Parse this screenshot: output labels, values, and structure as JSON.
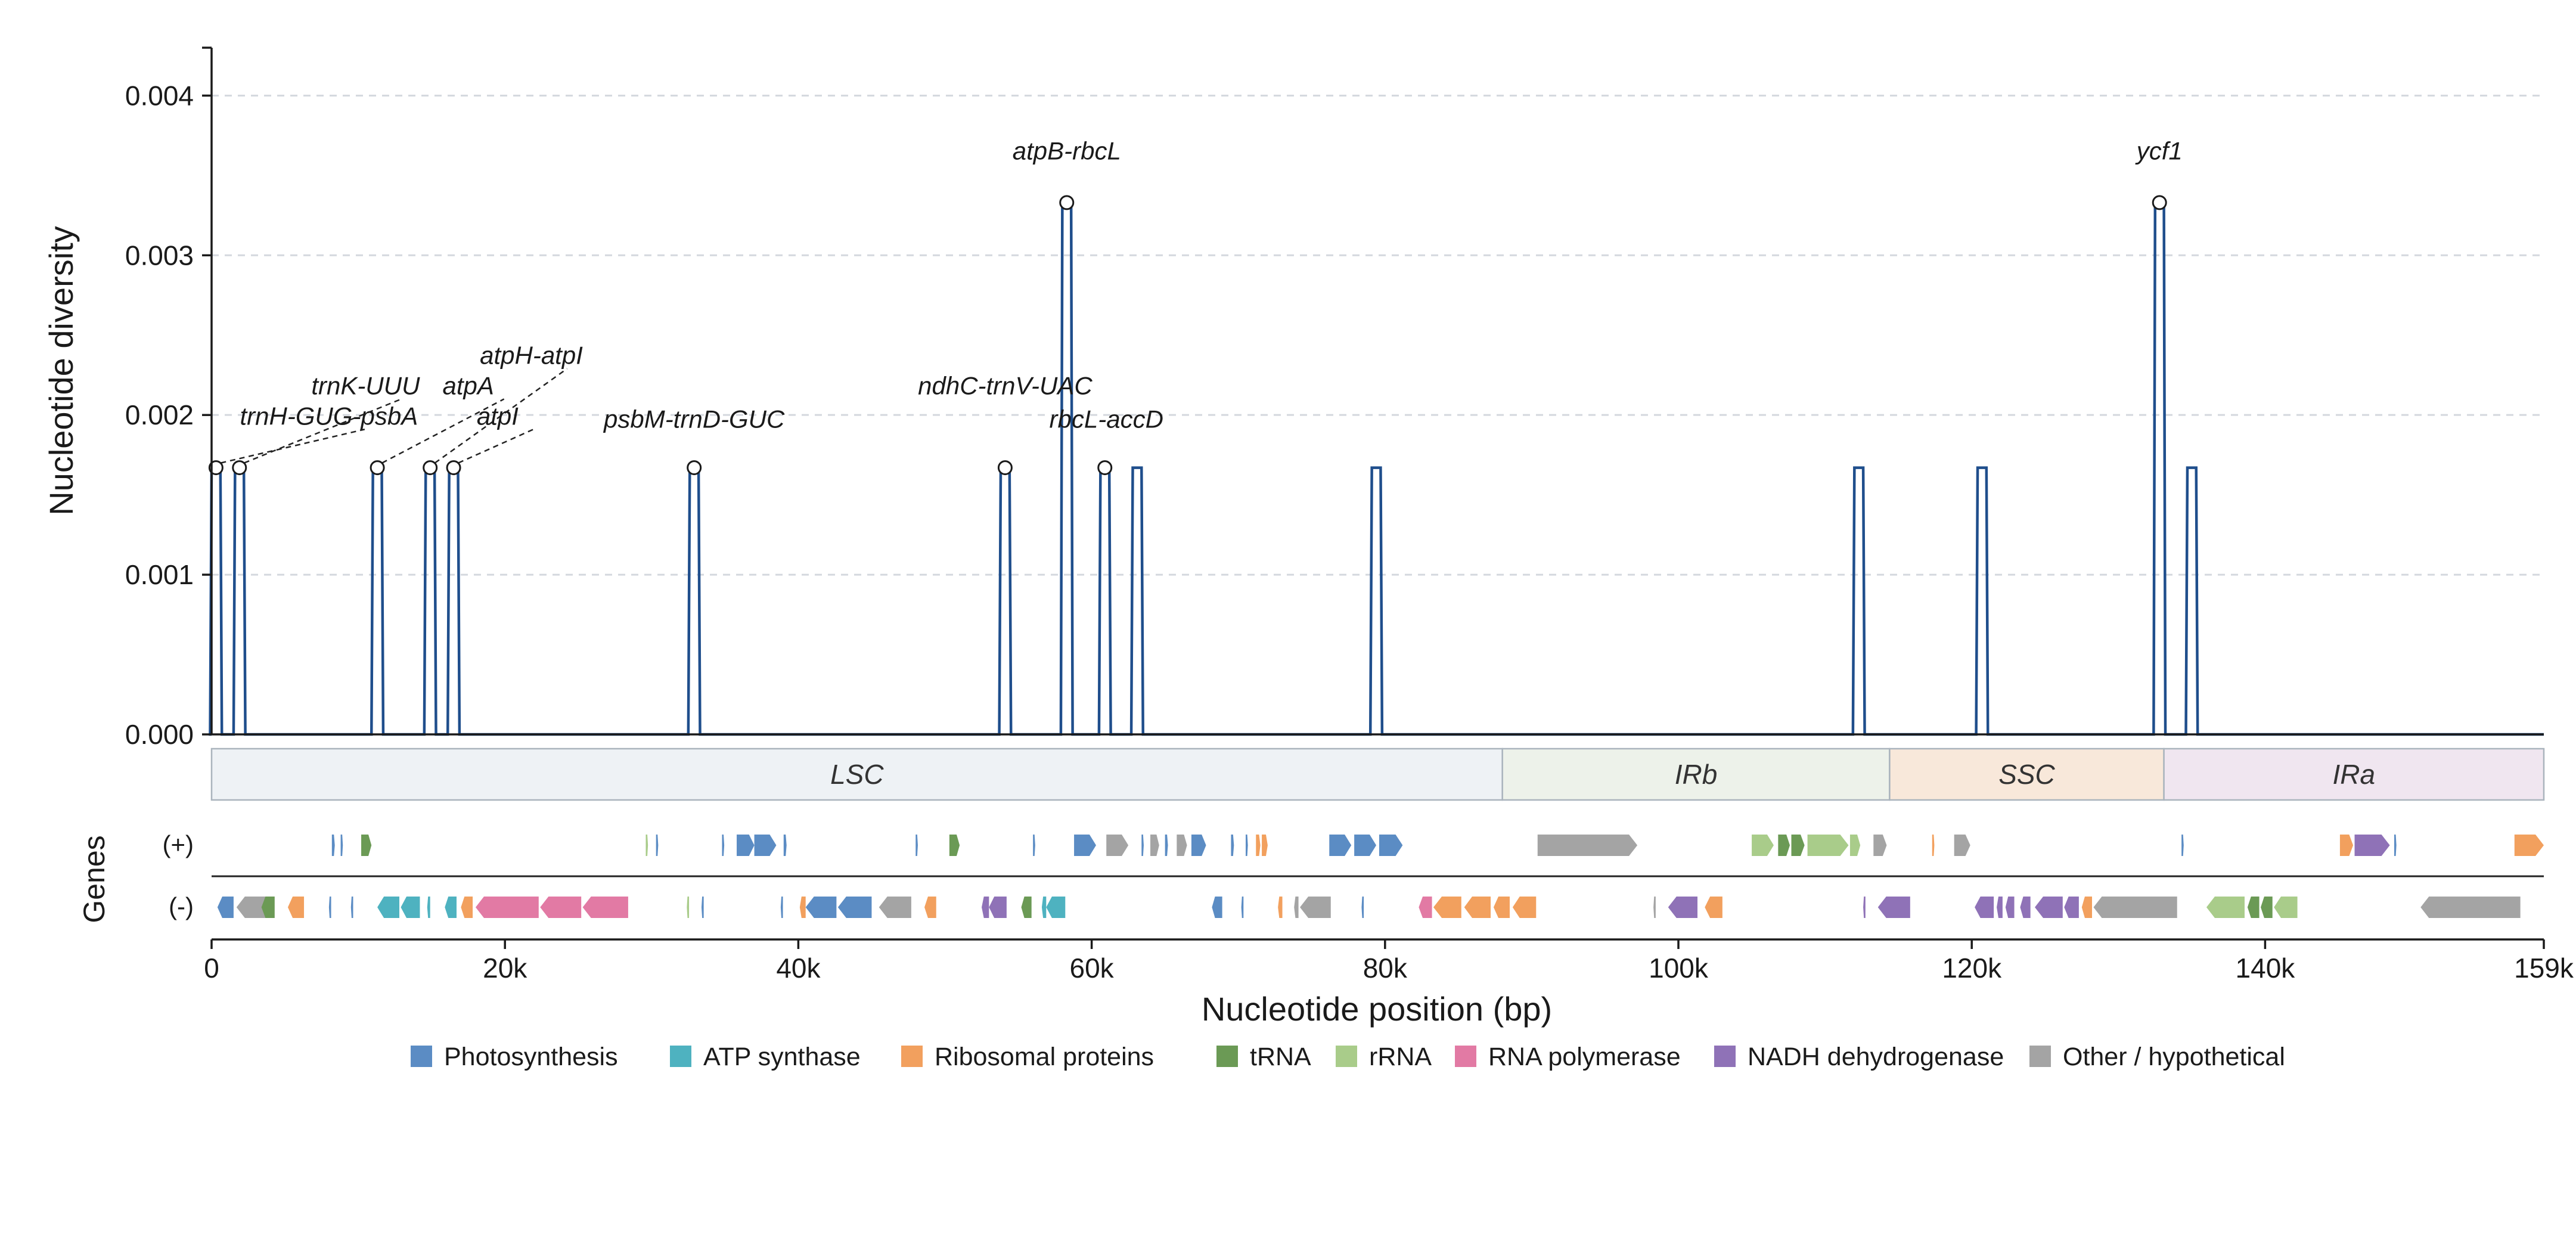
{
  "chart_data": {
    "type": "line",
    "ylabel": "Nucleotide diversity",
    "xlabel": "Nucleotide position (bp)",
    "genes_label": "Genes",
    "strand_labels": [
      "(+)",
      "(-)"
    ],
    "xlim": [
      0,
      159000
    ],
    "ylim": [
      0,
      0.0043
    ],
    "grid": true,
    "x_ticks": [
      0,
      20000,
      40000,
      60000,
      80000,
      100000,
      120000,
      140000,
      159000
    ],
    "x_tick_labels": [
      "0",
      "20k",
      "40k",
      "60k",
      "80k",
      "100k",
      "120k",
      "140k",
      "159k"
    ],
    "y_ticks": [
      0,
      0.001,
      0.002,
      0.003,
      0.004
    ],
    "y_tick_labels": [
      "0.000",
      "0.001",
      "0.002",
      "0.003",
      "0.004"
    ],
    "series": [
      {
        "color": "#1f4e8c",
        "peak_width": 600,
        "peaks": [
          {
            "x": 300,
            "y": 0.00167
          },
          {
            "x": 1900,
            "y": 0.00167
          },
          {
            "x": 11300,
            "y": 0.00167
          },
          {
            "x": 14900,
            "y": 0.00167
          },
          {
            "x": 16500,
            "y": 0.00167
          },
          {
            "x": 32900,
            "y": 0.00167
          },
          {
            "x": 54100,
            "y": 0.00167
          },
          {
            "x": 58300,
            "y": 0.00333
          },
          {
            "x": 60900,
            "y": 0.00167
          },
          {
            "x": 63100,
            "y": 0.00167
          },
          {
            "x": 79400,
            "y": 0.00167
          },
          {
            "x": 112300,
            "y": 0.00167
          },
          {
            "x": 120700,
            "y": 0.00167
          },
          {
            "x": 132800,
            "y": 0.00333
          },
          {
            "x": 135000,
            "y": 0.00167
          }
        ]
      }
    ],
    "annotations": [
      {
        "text": "trnH-GUG-psbA",
        "x": 300,
        "y": 0.00167,
        "tx": 8000,
        "ty": 0.00194,
        "leader": true
      },
      {
        "text": "trnK-UUU",
        "x": 1900,
        "y": 0.00167,
        "tx": 10500,
        "ty": 0.00213,
        "leader": true
      },
      {
        "text": "atpA",
        "x": 11300,
        "y": 0.00167,
        "tx": 17500,
        "ty": 0.00213,
        "leader": true
      },
      {
        "text": "atpH-atpI",
        "x": 14900,
        "y": 0.00167,
        "tx": 21800,
        "ty": 0.00232,
        "leader": true
      },
      {
        "text": "atpI",
        "x": 16500,
        "y": 0.00167,
        "tx": 19500,
        "ty": 0.00194,
        "leader": true
      },
      {
        "text": "psbM-trnD-GUC",
        "x": 32900,
        "y": 0.00167,
        "tx": 32900,
        "ty": 0.00192,
        "leader": false
      },
      {
        "text": "ndhC-trnV-UAC",
        "x": 54100,
        "y": 0.00167,
        "tx": 54100,
        "ty": 0.00213,
        "leader": false
      },
      {
        "text": "atpB-rbcL",
        "x": 58300,
        "y": 0.00333,
        "tx": 58300,
        "ty": 0.0036,
        "leader": false
      },
      {
        "text": "rbcL-accD",
        "x": 60900,
        "y": 0.00167,
        "tx": 61000,
        "ty": 0.00192,
        "leader": false
      },
      {
        "text": "ycf1",
        "x": 132800,
        "y": 0.00333,
        "tx": 132800,
        "ty": 0.0036,
        "leader": false
      }
    ],
    "regions": [
      {
        "name": "LSC",
        "start": 0,
        "end": 88000,
        "color": "#eef2f5"
      },
      {
        "name": "IRb",
        "start": 88000,
        "end": 114400,
        "color": "#edf2ea"
      },
      {
        "name": "SSC",
        "start": 114400,
        "end": 133100,
        "color": "#f8e8da"
      },
      {
        "name": "IRa",
        "start": 133100,
        "end": 159000,
        "color": "#f0e6f0"
      }
    ],
    "legend": {
      "position": "bottom",
      "items": [
        {
          "label": "Photosynthesis",
          "color": "#5b8cc4"
        },
        {
          "label": "ATP synthase",
          "color": "#4eb2c0"
        },
        {
          "label": "Ribosomal proteins",
          "color": "#f2a05e"
        },
        {
          "label": "tRNA",
          "color": "#6b9a55"
        },
        {
          "label": "rRNA",
          "color": "#a9cc8a"
        },
        {
          "label": "RNA polymerase",
          "color": "#e27aa4"
        },
        {
          "label": "NADH dehydrogenase",
          "color": "#8f72b7"
        },
        {
          "label": "Other / hypothetical",
          "color": "#a4a4a4"
        }
      ]
    },
    "genes": [
      {
        "strand": "+",
        "start": 8200,
        "end": 8400,
        "cat": "Photosynthesis"
      },
      {
        "strand": "+",
        "start": 8800,
        "end": 8950,
        "cat": "Photosynthesis"
      },
      {
        "strand": "+",
        "start": 10200,
        "end": 10900,
        "cat": "tRNA"
      },
      {
        "strand": "+",
        "start": 29600,
        "end": 29750,
        "cat": "rRNA"
      },
      {
        "strand": "+",
        "start": 30300,
        "end": 30450,
        "cat": "Photosynthesis"
      },
      {
        "strand": "+",
        "start": 34800,
        "end": 34950,
        "cat": "Photosynthesis"
      },
      {
        "strand": "+",
        "start": 35800,
        "end": 37000,
        "cat": "Photosynthesis"
      },
      {
        "strand": "+",
        "start": 37000,
        "end": 38500,
        "cat": "Photosynthesis"
      },
      {
        "strand": "+",
        "start": 39000,
        "end": 39200,
        "cat": "Photosynthesis"
      },
      {
        "strand": "+",
        "start": 48000,
        "end": 48150,
        "cat": "Photosynthesis"
      },
      {
        "strand": "+",
        "start": 50300,
        "end": 51000,
        "cat": "tRNA"
      },
      {
        "strand": "+",
        "start": 56000,
        "end": 56150,
        "cat": "Photosynthesis"
      },
      {
        "strand": "+",
        "start": 58800,
        "end": 60300,
        "cat": "Photosynthesis"
      },
      {
        "strand": "+",
        "start": 61000,
        "end": 62500,
        "cat": "Other / hypothetical"
      },
      {
        "strand": "+",
        "start": 63400,
        "end": 63550,
        "cat": "Photosynthesis"
      },
      {
        "strand": "+",
        "start": 64000,
        "end": 64600,
        "cat": "Other / hypothetical"
      },
      {
        "strand": "+",
        "start": 65000,
        "end": 65200,
        "cat": "Photosynthesis"
      },
      {
        "strand": "+",
        "start": 65800,
        "end": 66500,
        "cat": "Other / hypothetical"
      },
      {
        "strand": "+",
        "start": 66800,
        "end": 67800,
        "cat": "Photosynthesis"
      },
      {
        "strand": "+",
        "start": 69500,
        "end": 69700,
        "cat": "Photosynthesis"
      },
      {
        "strand": "+",
        "start": 70500,
        "end": 70650,
        "cat": "Photosynthesis"
      },
      {
        "strand": "+",
        "start": 71200,
        "end": 71500,
        "cat": "Ribosomal proteins"
      },
      {
        "strand": "+",
        "start": 71600,
        "end": 72000,
        "cat": "Ribosomal proteins"
      },
      {
        "strand": "+",
        "start": 76200,
        "end": 77700,
        "cat": "Photosynthesis"
      },
      {
        "strand": "+",
        "start": 77900,
        "end": 79400,
        "cat": "Photosynthesis"
      },
      {
        "strand": "+",
        "start": 79600,
        "end": 81200,
        "cat": "Photosynthesis"
      },
      {
        "strand": "+",
        "start": 90400,
        "end": 97200,
        "cat": "Other / hypothetical"
      },
      {
        "strand": "+",
        "start": 105000,
        "end": 106500,
        "cat": "rRNA"
      },
      {
        "strand": "+",
        "start": 106800,
        "end": 107600,
        "cat": "tRNA"
      },
      {
        "strand": "+",
        "start": 107700,
        "end": 108600,
        "cat": "tRNA"
      },
      {
        "strand": "+",
        "start": 108800,
        "end": 111600,
        "cat": "rRNA"
      },
      {
        "strand": "+",
        "start": 111700,
        "end": 112400,
        "cat": "rRNA"
      },
      {
        "strand": "+",
        "start": 113300,
        "end": 114200,
        "cat": "Other / hypothetical"
      },
      {
        "strand": "+",
        "start": 117300,
        "end": 117450,
        "cat": "Ribosomal proteins"
      },
      {
        "strand": "+",
        "start": 118800,
        "end": 119900,
        "cat": "Other / hypothetical"
      },
      {
        "strand": "+",
        "start": 134300,
        "end": 134450,
        "cat": "Photosynthesis"
      },
      {
        "strand": "+",
        "start": 145100,
        "end": 146000,
        "cat": "Ribosomal proteins"
      },
      {
        "strand": "+",
        "start": 146100,
        "end": 148500,
        "cat": "NADH dehydrogenase"
      },
      {
        "strand": "+",
        "start": 148800,
        "end": 148950,
        "cat": "Photosynthesis"
      },
      {
        "strand": "+",
        "start": 157000,
        "end": 159000,
        "cat": "Ribosomal proteins"
      },
      {
        "strand": "-",
        "start": 400,
        "end": 1500,
        "cat": "Photosynthesis"
      },
      {
        "strand": "-",
        "start": 1700,
        "end": 3900,
        "cat": "Other / hypothetical"
      },
      {
        "strand": "-",
        "start": 3400,
        "end": 4300,
        "cat": "tRNA"
      },
      {
        "strand": "-",
        "start": 5200,
        "end": 6300,
        "cat": "Ribosomal proteins"
      },
      {
        "strand": "-",
        "start": 8000,
        "end": 8150,
        "cat": "Photosynthesis"
      },
      {
        "strand": "-",
        "start": 9500,
        "end": 9650,
        "cat": "Photosynthesis"
      },
      {
        "strand": "-",
        "start": 11300,
        "end": 12800,
        "cat": "ATP synthase"
      },
      {
        "strand": "-",
        "start": 12900,
        "end": 14200,
        "cat": "ATP synthase"
      },
      {
        "strand": "-",
        "start": 14700,
        "end": 14900,
        "cat": "ATP synthase"
      },
      {
        "strand": "-",
        "start": 15900,
        "end": 16700,
        "cat": "ATP synthase"
      },
      {
        "strand": "-",
        "start": 17000,
        "end": 17800,
        "cat": "Ribosomal proteins"
      },
      {
        "strand": "-",
        "start": 18000,
        "end": 22300,
        "cat": "RNA polymerase"
      },
      {
        "strand": "-",
        "start": 22400,
        "end": 25200,
        "cat": "RNA polymerase"
      },
      {
        "strand": "-",
        "start": 25300,
        "end": 28400,
        "cat": "RNA polymerase"
      },
      {
        "strand": "-",
        "start": 32400,
        "end": 32550,
        "cat": "rRNA"
      },
      {
        "strand": "-",
        "start": 33400,
        "end": 33550,
        "cat": "Photosynthesis"
      },
      {
        "strand": "-",
        "start": 38800,
        "end": 38950,
        "cat": "Photosynthesis"
      },
      {
        "strand": "-",
        "start": 40100,
        "end": 40500,
        "cat": "Ribosomal proteins"
      },
      {
        "strand": "-",
        "start": 40500,
        "end": 42600,
        "cat": "Photosynthesis"
      },
      {
        "strand": "-",
        "start": 42700,
        "end": 45000,
        "cat": "Photosynthesis"
      },
      {
        "strand": "-",
        "start": 45500,
        "end": 47700,
        "cat": "Other / hypothetical"
      },
      {
        "strand": "-",
        "start": 48600,
        "end": 49400,
        "cat": "Ribosomal proteins"
      },
      {
        "strand": "-",
        "start": 52500,
        "end": 53000,
        "cat": "NADH dehydrogenase"
      },
      {
        "strand": "-",
        "start": 53000,
        "end": 54200,
        "cat": "NADH dehydrogenase"
      },
      {
        "strand": "-",
        "start": 55200,
        "end": 55900,
        "cat": "tRNA"
      },
      {
        "strand": "-",
        "start": 56600,
        "end": 56900,
        "cat": "ATP synthase"
      },
      {
        "strand": "-",
        "start": 56900,
        "end": 58200,
        "cat": "ATP synthase"
      },
      {
        "strand": "-",
        "start": 68200,
        "end": 68900,
        "cat": "Photosynthesis"
      },
      {
        "strand": "-",
        "start": 70200,
        "end": 70350,
        "cat": "Photosynthesis"
      },
      {
        "strand": "-",
        "start": 72700,
        "end": 73000,
        "cat": "Ribosomal proteins"
      },
      {
        "strand": "-",
        "start": 73800,
        "end": 74100,
        "cat": "Other / hypothetical"
      },
      {
        "strand": "-",
        "start": 74200,
        "end": 76300,
        "cat": "Other / hypothetical"
      },
      {
        "strand": "-",
        "start": 78400,
        "end": 78550,
        "cat": "Photosynthesis"
      },
      {
        "strand": "-",
        "start": 82300,
        "end": 83200,
        "cat": "RNA polymerase"
      },
      {
        "strand": "-",
        "start": 83300,
        "end": 85200,
        "cat": "Ribosomal proteins"
      },
      {
        "strand": "-",
        "start": 85400,
        "end": 87200,
        "cat": "Ribosomal proteins"
      },
      {
        "strand": "-",
        "start": 87400,
        "end": 88500,
        "cat": "Ribosomal proteins"
      },
      {
        "strand": "-",
        "start": 88700,
        "end": 90300,
        "cat": "Ribosomal proteins"
      },
      {
        "strand": "-",
        "start": 98300,
        "end": 98450,
        "cat": "Other / hypothetical"
      },
      {
        "strand": "-",
        "start": 99300,
        "end": 101300,
        "cat": "NADH dehydrogenase"
      },
      {
        "strand": "-",
        "start": 101800,
        "end": 103000,
        "cat": "Ribosomal proteins"
      },
      {
        "strand": "-",
        "start": 112600,
        "end": 112750,
        "cat": "NADH dehydrogenase"
      },
      {
        "strand": "-",
        "start": 113600,
        "end": 115800,
        "cat": "NADH dehydrogenase"
      },
      {
        "strand": "-",
        "start": 120200,
        "end": 121500,
        "cat": "NADH dehydrogenase"
      },
      {
        "strand": "-",
        "start": 121700,
        "end": 122100,
        "cat": "NADH dehydrogenase"
      },
      {
        "strand": "-",
        "start": 122300,
        "end": 122900,
        "cat": "NADH dehydrogenase"
      },
      {
        "strand": "-",
        "start": 123300,
        "end": 124000,
        "cat": "NADH dehydrogenase"
      },
      {
        "strand": "-",
        "start": 124300,
        "end": 126200,
        "cat": "NADH dehydrogenase"
      },
      {
        "strand": "-",
        "start": 126300,
        "end": 127300,
        "cat": "NADH dehydrogenase"
      },
      {
        "strand": "-",
        "start": 127500,
        "end": 128200,
        "cat": "Ribosomal proteins"
      },
      {
        "strand": "-",
        "start": 128300,
        "end": 134000,
        "cat": "Other / hypothetical"
      },
      {
        "strand": "-",
        "start": 136000,
        "end": 138600,
        "cat": "rRNA"
      },
      {
        "strand": "-",
        "start": 138800,
        "end": 139600,
        "cat": "tRNA"
      },
      {
        "strand": "-",
        "start": 139700,
        "end": 140500,
        "cat": "tRNA"
      },
      {
        "strand": "-",
        "start": 140600,
        "end": 142200,
        "cat": "rRNA"
      },
      {
        "strand": "-",
        "start": 150600,
        "end": 157400,
        "cat": "Other / hypothetical"
      }
    ]
  }
}
